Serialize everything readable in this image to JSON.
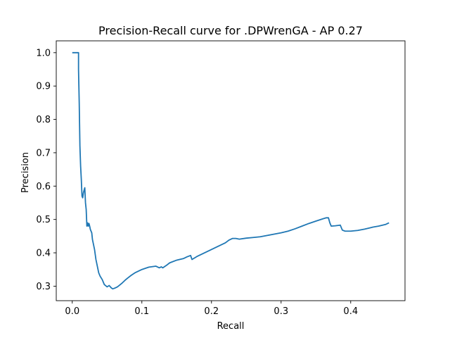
{
  "chart_data": {
    "type": "line",
    "title": "Precision-Recall curve for .DPWrenGA - AP 0.27",
    "xlabel": "Recall",
    "ylabel": "Precision",
    "xlim": [
      -0.023,
      0.478
    ],
    "ylim": [
      0.2565,
      1.0355
    ],
    "xticks": [
      0.0,
      0.1,
      0.2,
      0.3,
      0.4
    ],
    "xtick_labels": [
      "0.0",
      "0.1",
      "0.2",
      "0.3",
      "0.4"
    ],
    "yticks": [
      0.3,
      0.4,
      0.5,
      0.6,
      0.7,
      0.8,
      0.9,
      1.0
    ],
    "ytick_labels": [
      "0.3",
      "0.4",
      "0.5",
      "0.6",
      "0.7",
      "0.8",
      "0.9",
      "1.0"
    ],
    "grid": false,
    "line_color": "#1f77b4",
    "series": [
      {
        "x": [
          0.0,
          0.009,
          0.009,
          0.01,
          0.011,
          0.012,
          0.013,
          0.014,
          0.015,
          0.016,
          0.018,
          0.019,
          0.02,
          0.021,
          0.022,
          0.023,
          0.024,
          0.025,
          0.026,
          0.028,
          0.029,
          0.03,
          0.032,
          0.034,
          0.036,
          0.038,
          0.04,
          0.043,
          0.046,
          0.05,
          0.053,
          0.056,
          0.058,
          0.061,
          0.063,
          0.065,
          0.068,
          0.072,
          0.076,
          0.08,
          0.085,
          0.09,
          0.095,
          0.1,
          0.11,
          0.12,
          0.125,
          0.128,
          0.13,
          0.135,
          0.14,
          0.15,
          0.16,
          0.165,
          0.17,
          0.172,
          0.18,
          0.19,
          0.2,
          0.21,
          0.22,
          0.225,
          0.23,
          0.235,
          0.24,
          0.25,
          0.26,
          0.27,
          0.28,
          0.29,
          0.3,
          0.31,
          0.32,
          0.33,
          0.34,
          0.35,
          0.36,
          0.365,
          0.368,
          0.37,
          0.372,
          0.378,
          0.385,
          0.388,
          0.392,
          0.4,
          0.41,
          0.42,
          0.428,
          0.432,
          0.44,
          0.45,
          0.455
        ],
        "y": [
          1.0,
          1.0,
          0.95,
          0.85,
          0.72,
          0.66,
          0.62,
          0.57,
          0.565,
          0.58,
          0.595,
          0.55,
          0.53,
          0.48,
          0.49,
          0.48,
          0.488,
          0.48,
          0.47,
          0.46,
          0.44,
          0.43,
          0.41,
          0.38,
          0.36,
          0.34,
          0.33,
          0.32,
          0.305,
          0.298,
          0.302,
          0.295,
          0.292,
          0.294,
          0.296,
          0.298,
          0.303,
          0.31,
          0.318,
          0.325,
          0.333,
          0.34,
          0.345,
          0.35,
          0.357,
          0.36,
          0.355,
          0.358,
          0.355,
          0.362,
          0.37,
          0.378,
          0.383,
          0.388,
          0.392,
          0.38,
          0.39,
          0.4,
          0.41,
          0.42,
          0.43,
          0.438,
          0.443,
          0.443,
          0.441,
          0.444,
          0.446,
          0.448,
          0.452,
          0.456,
          0.46,
          0.465,
          0.472,
          0.48,
          0.488,
          0.495,
          0.502,
          0.505,
          0.505,
          0.49,
          0.48,
          0.481,
          0.483,
          0.468,
          0.465,
          0.465,
          0.467,
          0.471,
          0.475,
          0.477,
          0.48,
          0.485,
          0.49
        ]
      }
    ]
  }
}
